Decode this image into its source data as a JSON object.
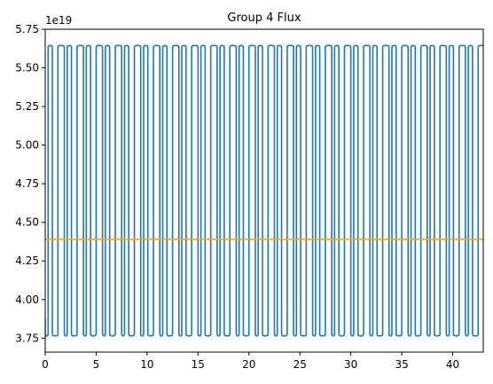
{
  "chart_data": {
    "type": "line",
    "title": "Group 4 Flux",
    "offset_label": "1e19",
    "xlabel": "",
    "ylabel": "",
    "xlim": [
      0,
      43
    ],
    "ylim": [
      3.66,
      5.75
    ],
    "x_ticks": [
      0,
      5,
      10,
      15,
      20,
      25,
      30,
      35,
      40
    ],
    "x_tick_labels": [
      "0",
      "5",
      "10",
      "15",
      "20",
      "25",
      "30",
      "35",
      "40"
    ],
    "y_ticks": [
      3.75,
      4.0,
      4.25,
      4.5,
      4.75,
      5.0,
      5.25,
      5.5,
      5.75
    ],
    "y_tick_labels": [
      "3.75",
      "4.00",
      "4.25",
      "4.50",
      "4.75",
      "5.00",
      "5.25",
      "5.50",
      "5.75"
    ],
    "grid": false,
    "legend": "none",
    "series": [
      {
        "color": "#1f77b4",
        "pattern": "square-wave",
        "period": 1.25,
        "high": 5.645,
        "low": 3.765,
        "x_start": 0,
        "x_end": 43
      },
      {
        "color": "#ffa500",
        "x": [
          0,
          43
        ],
        "y": [
          4.39,
          4.39
        ]
      }
    ]
  }
}
